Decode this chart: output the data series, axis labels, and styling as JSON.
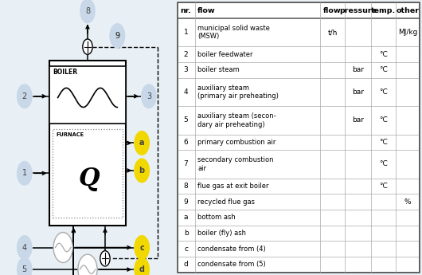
{
  "fig_width": 5.3,
  "fig_height": 3.45,
  "dpi": 100,
  "bg_color": "#e8f0f5",
  "circle_color_light": "#c8d8e8",
  "circle_color_yellow": "#f0d800",
  "table_rows": [
    [
      "1",
      "municipal solid waste\n(MSW)",
      "t/h",
      "",
      "",
      "MJ/kg"
    ],
    [
      "2",
      "boiler feedwater",
      "",
      "",
      "°C",
      ""
    ],
    [
      "3",
      "boiler steam",
      "",
      "bar",
      "°C",
      ""
    ],
    [
      "4",
      "auxiliary steam\n(primary air preheating)",
      "",
      "bar",
      "°C",
      ""
    ],
    [
      "5",
      "auxiliary steam (secon-\ndary air preheating)",
      "",
      "bar",
      "°C",
      ""
    ],
    [
      "6",
      "primary combustion air",
      "",
      "",
      "°C",
      ""
    ],
    [
      "7",
      "secondary combustion\nair",
      "",
      "",
      "°C",
      ""
    ],
    [
      "8",
      "flue gas at exit boiler",
      "",
      "",
      "°C",
      ""
    ],
    [
      "9",
      "recycled flue gas",
      "",
      "",
      "",
      "%"
    ],
    [
      "a",
      "bottom ash",
      "",
      "",
      "",
      ""
    ],
    [
      "b",
      "boiler (fly) ash",
      "",
      "",
      "",
      ""
    ],
    [
      "c",
      "condensate from (4)",
      "",
      "",
      "",
      ""
    ],
    [
      "d",
      "condensate from (5)",
      "",
      "",
      "",
      ""
    ]
  ]
}
